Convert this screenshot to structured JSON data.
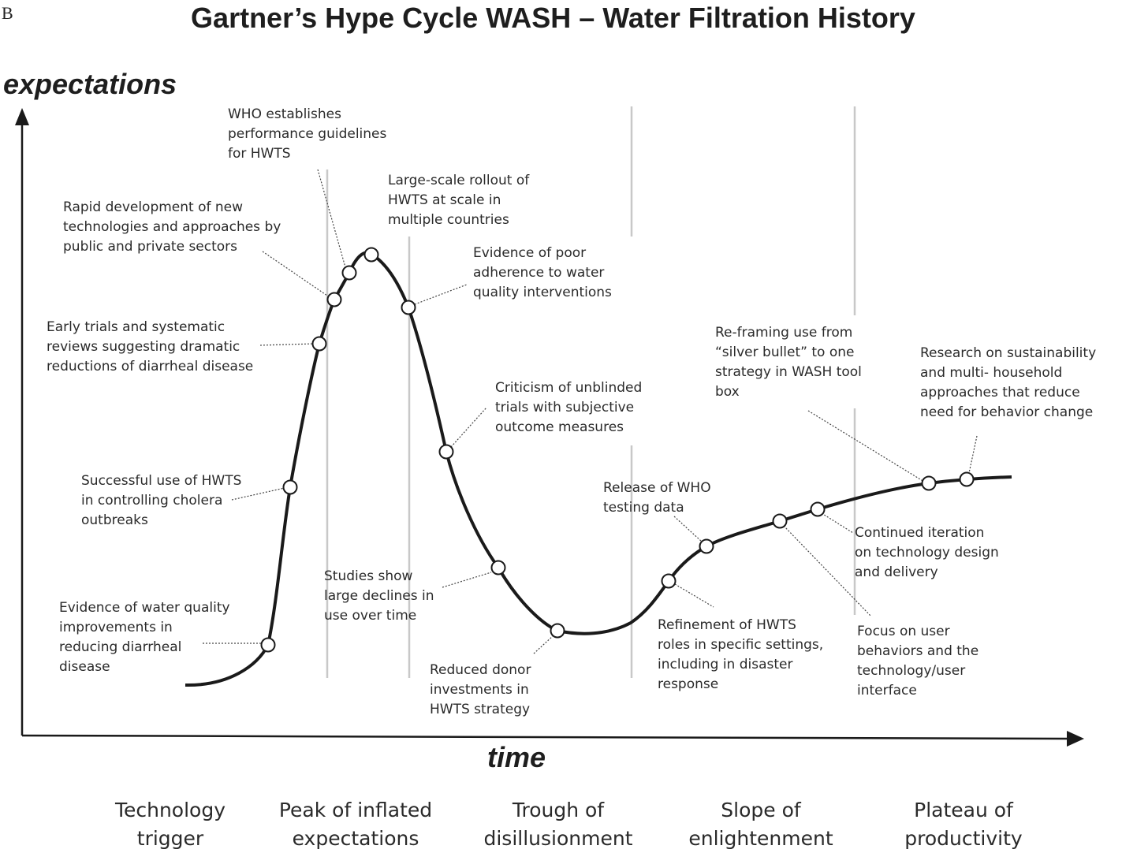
{
  "panel_letter": "B",
  "title": "Gartner’s Hype Cycle WASH – Water Filtration History",
  "axes": {
    "y_label": "expectations",
    "x_label": "time"
  },
  "phases": [
    "Technology\ntrigger",
    "Peak of inflated\nexpectations",
    "Trough of\ndisillusionment",
    "Slope of\nenlightenment",
    "Plateau of\nproductivity"
  ],
  "annotations": [
    "Evidence of water quality\nimprovements in\nreducing diarrheal\ndisease",
    "Successful use of HWTS\nin controlling cholera\noutbreaks",
    "Early trials and systematic\nreviews suggesting dramatic\nreductions of diarrheal disease",
    "Rapid development of new\ntechnologies and approaches by\npublic and private sectors",
    "WHO establishes\nperformance guidelines\nfor HWTS",
    "Large-scale rollout of\nHWTS at scale in\nmultiple countries",
    "Evidence of poor\nadherence to water\nquality interventions",
    "Criticism of unblinded\ntrials with subjective\noutcome measures",
    "Studies show\nlarge declines in\nuse over time",
    "Reduced donor\ninvestments in\nHWTS strategy",
    "Release of WHO\ntesting data",
    "Refinement of HWTS\nroles in specific settings,\nincluding in disaster\nresponse",
    "Re-framing use from\n“silver bullet” to one\nstrategy in WASH tool\nbox",
    "Continued iteration\non technology design\nand delivery",
    "Focus on user\nbehaviors and the\ntechnology/user\ninterface",
    "Research on sustainability\nand multi- household\napproaches that reduce\nneed for behavior change"
  ],
  "colors": {
    "curve": "#1a1a1a",
    "divider": "#c8c8c8",
    "leader": "#444444"
  }
}
